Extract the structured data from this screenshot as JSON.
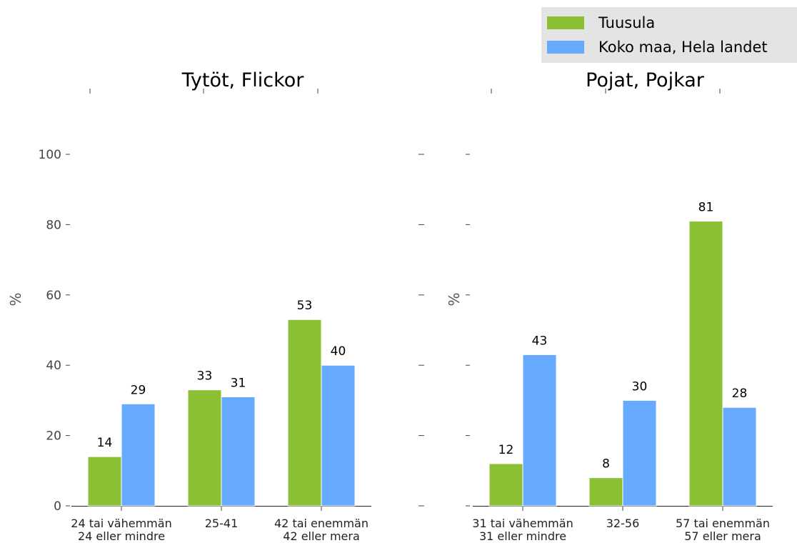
{
  "chart_data": [
    {
      "type": "bar",
      "title": "Tytöt, Flickor",
      "ylabel": "%",
      "ylim": [
        0,
        100
      ],
      "yticks": [
        0,
        20,
        40,
        60,
        80,
        100
      ],
      "categories": [
        [
          "24 tai vähemmän",
          "24 eller mindre"
        ],
        [
          "25-41"
        ],
        [
          "42 tai enemmän",
          "42 eller mera"
        ]
      ],
      "series": [
        {
          "name": "Tuusula",
          "color": "#8bc034",
          "values": [
            14,
            33,
            53
          ]
        },
        {
          "name": "Koko maa, Hela landet",
          "color": "#66aaff",
          "values": [
            29,
            31,
            40
          ]
        }
      ]
    },
    {
      "type": "bar",
      "title": "Pojat, Pojkar",
      "ylabel": "%",
      "ylim": [
        0,
        100
      ],
      "yticks": [
        0,
        20,
        40,
        60,
        80,
        100
      ],
      "categories": [
        [
          "31 tai vähemmän",
          "31 eller mindre"
        ],
        [
          "32-56"
        ],
        [
          "57 tai enemmän",
          "57 eller mera"
        ]
      ],
      "series": [
        {
          "name": "Tuusula",
          "color": "#8bc034",
          "values": [
            12,
            8,
            81
          ]
        },
        {
          "name": "Koko maa, Hela landet",
          "color": "#66aaff",
          "values": [
            43,
            30,
            28
          ]
        }
      ]
    }
  ],
  "legend": {
    "position": "top-right",
    "items": [
      {
        "label": "Tuusula",
        "color": "#8bc034"
      },
      {
        "label": "Koko maa, Hela landet",
        "color": "#66aaff"
      }
    ]
  }
}
